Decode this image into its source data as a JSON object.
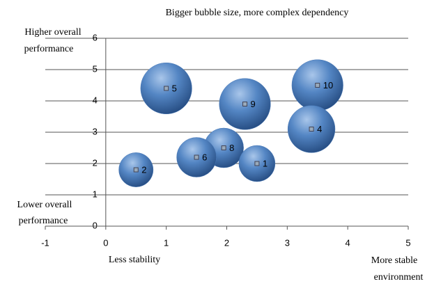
{
  "chart_data": {
    "type": "bubble",
    "title": "Bigger bubble size, more complex dependency",
    "y_high_label": [
      "Higher overall",
      "performance"
    ],
    "y_low_label": [
      "Lower overall",
      "performance"
    ],
    "x_low_label": "Less stability",
    "x_high_label": [
      "More stable",
      "environment"
    ],
    "point_labels": [
      "5",
      "9",
      "10",
      "4",
      "8",
      "6",
      "1",
      "2"
    ],
    "x": [
      1.0,
      2.3,
      3.5,
      3.4,
      1.95,
      1.5,
      2.5,
      0.5
    ],
    "values": [
      4.4,
      3.9,
      4.5,
      3.1,
      2.5,
      2.2,
      2.0,
      1.8
    ],
    "sizes": [
      2.0,
      2.0,
      2.0,
      1.7,
      1.2,
      1.2,
      1.0,
      0.9
    ],
    "color": "#4a7ab8",
    "xlim": [
      -1,
      5
    ],
    "xticks": [
      -1,
      0,
      1,
      2,
      3,
      4,
      5
    ],
    "ylim": [
      0,
      6
    ],
    "yticks": [
      0,
      1,
      2,
      3,
      4,
      5,
      6
    ],
    "grid": true
  }
}
